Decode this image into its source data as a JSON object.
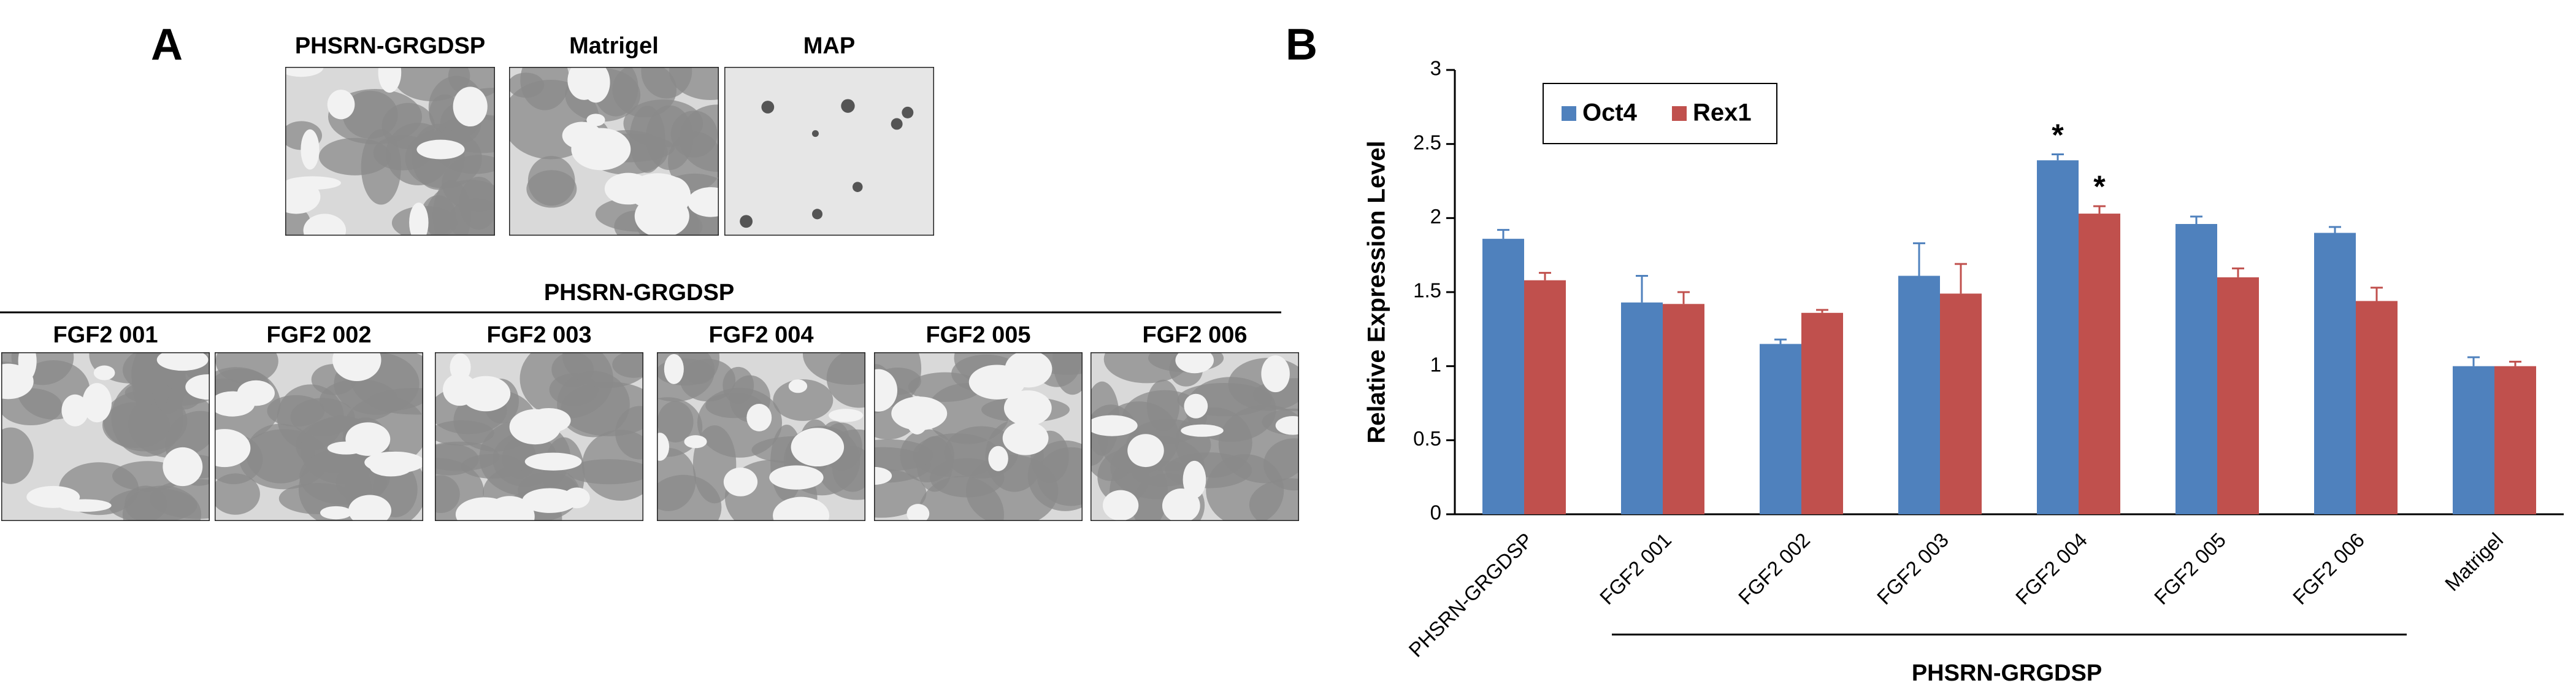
{
  "panel_a": {
    "label": "A",
    "top_images": [
      "PHSRN-GRGDSP",
      "Matrigel",
      "MAP"
    ],
    "group_label": "PHSRN-GRGDSP",
    "bottom_images": [
      "FGF2 001",
      "FGF2 002",
      "FGF2 003",
      "FGF2 004",
      "FGF2 005",
      "FGF2 006"
    ]
  },
  "chart_data": {
    "type": "bar",
    "panel_label": "B",
    "y_label": "Relative Expression Level",
    "categories": [
      "PHSRN-GRGDSP",
      "FGF2 001",
      "FGF2 002",
      "FGF2 003",
      "FGF2 004",
      "FGF2 005",
      "FGF2 006",
      "Matrigel"
    ],
    "group_label": "PHSRN-GRGDSP",
    "series": [
      {
        "name": "Oct4",
        "color": "#4f81bd",
        "values": [
          1.86,
          1.43,
          1.15,
          1.61,
          2.39,
          1.96,
          1.9,
          1.0
        ],
        "errors": [
          0.06,
          0.18,
          0.03,
          0.22,
          0.04,
          0.05,
          0.04,
          0.06
        ],
        "marks": [
          null,
          null,
          null,
          null,
          "*",
          null,
          null,
          null
        ]
      },
      {
        "name": "Rex1",
        "color": "#c0504d",
        "values": [
          1.58,
          1.42,
          1.36,
          1.49,
          2.03,
          1.6,
          1.44,
          1.0
        ],
        "errors": [
          0.05,
          0.08,
          0.02,
          0.2,
          0.05,
          0.06,
          0.09,
          0.03
        ],
        "marks": [
          null,
          null,
          null,
          null,
          "*",
          null,
          null,
          null
        ]
      }
    ],
    "ylim": [
      0,
      3
    ],
    "yticks": [
      0,
      0.5,
      1,
      1.5,
      2,
      2.5,
      3
    ],
    "grid": false,
    "legend": "top-left"
  }
}
